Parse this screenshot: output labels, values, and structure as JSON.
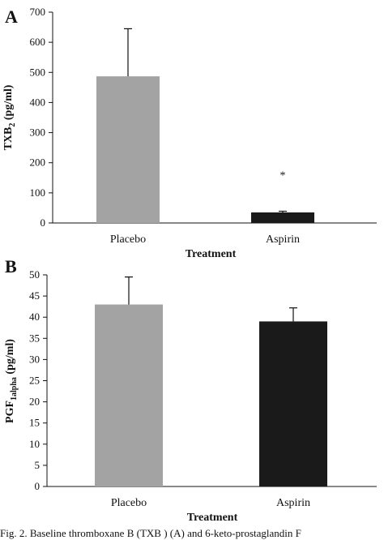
{
  "chart_data": [
    {
      "type": "bar",
      "panel": "A",
      "categories": [
        "Placebo",
        "Aspirin"
      ],
      "values": [
        487,
        35
      ],
      "errors": [
        158,
        4
      ],
      "colors": [
        "#a3a3a3",
        "#1a1a1a"
      ],
      "annotations": [
        "",
        "*"
      ],
      "xlabel": "Treatment",
      "ylabel": "TXB",
      "ylabel_sub": "2",
      "ylabel_unit": " (pg/ml)",
      "ylim": [
        0,
        700
      ],
      "yticks": [
        0,
        100,
        200,
        300,
        400,
        500,
        600,
        700
      ],
      "grid": false
    },
    {
      "type": "bar",
      "panel": "B",
      "categories": [
        "Placebo",
        "Aspirin"
      ],
      "values": [
        43,
        39
      ],
      "errors": [
        6.5,
        3.2
      ],
      "colors": [
        "#a3a3a3",
        "#1a1a1a"
      ],
      "annotations": [
        "",
        ""
      ],
      "xlabel": "Treatment",
      "ylabel": "PGF",
      "ylabel_sub": "1alpha",
      "ylabel_unit": " (pg/ml)",
      "ylim": [
        0,
        50
      ],
      "yticks": [
        0,
        5,
        10,
        15,
        20,
        25,
        30,
        35,
        40,
        45,
        50
      ],
      "grid": false
    }
  ],
  "caption": "Fig. 2. Baseline thromboxane B  (TXB ) (A) and 6-keto-prostaglandin F"
}
